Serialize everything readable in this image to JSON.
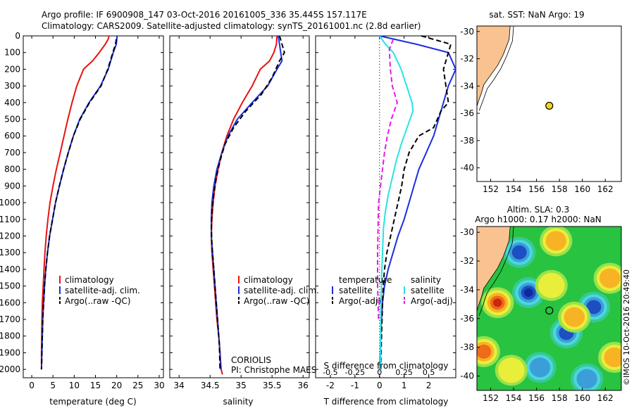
{
  "header": {
    "line1": "Argo profile: IF 6900908_147 03-Oct-2016 20161005_336 35.445S 157.117E",
    "line2": "Climatology: CARS2009. Satellite-adjusted climatology: synTS_20161001.nc (2.8d earlier)"
  },
  "colors": {
    "climatology": "#e8130f",
    "satellite": "#1c2ee0",
    "argo": "#000000",
    "salinity_sat": "#27e4e4",
    "salinity_argo": "#e21ce0",
    "land": "#f9c291",
    "marker": "#f2d517"
  },
  "credits": {
    "coriolis": "CORIOLIS",
    "pi": "PI: Christophe MAES",
    "imos": "©IMOS 10-Oct-2016 20:49:40"
  },
  "chart_data": [
    {
      "id": "temperature",
      "type": "line",
      "xlabel": "temperature (deg C)",
      "ylabel": "",
      "xlim": [
        -2,
        31
      ],
      "ylim": [
        2050,
        0
      ],
      "x_ticks": [
        0,
        5,
        10,
        15,
        20,
        25,
        30
      ],
      "y_ticks": [
        0,
        100,
        200,
        300,
        400,
        500,
        600,
        700,
        800,
        900,
        1000,
        1100,
        1200,
        1300,
        1400,
        1500,
        1600,
        1700,
        1800,
        1900,
        2000
      ],
      "legend": [
        "climatology",
        "satellite-adj. clim.",
        "Argo(..raw -QC)"
      ],
      "legend_position": "lower-center",
      "series": [
        {
          "name": "climatology",
          "color_key": "climatology",
          "style": "solid",
          "x": [
            18.2,
            18.0,
            17.3,
            15.9,
            14.3,
            12.2,
            10.6,
            9.5,
            8.5,
            7.6,
            6.7,
            5.8,
            5.0,
            4.3,
            3.8,
            3.4,
            3.1,
            2.9,
            2.7,
            2.5,
            2.4,
            2.3,
            2.3
          ],
          "y": [
            0,
            20,
            50,
            100,
            150,
            200,
            300,
            400,
            500,
            600,
            700,
            800,
            900,
            1000,
            1100,
            1200,
            1300,
            1400,
            1500,
            1600,
            1700,
            1900,
            2000
          ]
        },
        {
          "name": "satellite-adj. clim.",
          "color_key": "satellite",
          "style": "solid",
          "x": [
            20.1,
            19.9,
            19.2,
            18.0,
            16.2,
            13.5,
            11.3,
            9.8,
            8.6,
            7.5,
            6.5,
            5.6,
            4.9,
            4.2,
            3.7,
            3.3,
            3.0,
            2.8,
            2.6,
            2.5,
            2.4,
            2.3
          ],
          "y": [
            0,
            50,
            100,
            200,
            300,
            400,
            500,
            600,
            700,
            800,
            900,
            1000,
            1100,
            1200,
            1300,
            1400,
            1500,
            1600,
            1700,
            1800,
            1900,
            2000
          ]
        },
        {
          "name": "Argo(..raw -QC)",
          "color_key": "argo",
          "style": "dashed",
          "x": [
            19.9,
            19.7,
            19.1,
            17.9,
            16.3,
            13.6,
            11.4,
            9.8,
            8.6,
            7.5,
            6.5,
            5.6,
            4.9,
            4.2,
            3.7,
            3.3,
            3.0,
            2.8,
            2.6,
            2.5,
            2.4,
            2.3
          ],
          "y": [
            20,
            50,
            100,
            200,
            300,
            400,
            500,
            600,
            700,
            800,
            900,
            1000,
            1100,
            1200,
            1300,
            1400,
            1500,
            1600,
            1700,
            1800,
            1900,
            2000
          ]
        }
      ]
    },
    {
      "id": "salinity",
      "type": "line",
      "xlabel": "salinity",
      "xlim": [
        33.85,
        36.1
      ],
      "ylim": [
        2050,
        0
      ],
      "x_ticks": [
        34,
        34.5,
        35,
        35.5,
        36
      ],
      "legend": [
        "climatology",
        "satellite-adj. clim.",
        "Argo(..raw -QC)"
      ],
      "legend_position": "lower-right",
      "series": [
        {
          "name": "climatology",
          "color_key": "climatology",
          "style": "solid",
          "x": [
            35.58,
            35.57,
            35.53,
            35.46,
            35.31,
            35.18,
            35.02,
            34.88,
            34.77,
            34.69,
            34.63,
            34.58,
            34.55,
            34.53,
            34.52,
            34.53,
            34.55,
            34.57,
            34.59,
            34.61,
            34.64,
            34.66,
            34.68,
            34.7
          ],
          "y": [
            0,
            50,
            100,
            150,
            200,
            300,
            400,
            500,
            600,
            700,
            800,
            900,
            1000,
            1100,
            1200,
            1300,
            1400,
            1500,
            1600,
            1700,
            1800,
            1900,
            2000,
            2030
          ]
        },
        {
          "name": "satellite-adj. clim.",
          "color_key": "satellite",
          "style": "solid",
          "x": [
            35.6,
            35.62,
            35.64,
            35.66,
            35.58,
            35.43,
            35.18,
            34.94,
            34.79,
            34.69,
            34.61,
            34.56,
            34.53,
            34.52,
            34.52,
            34.54,
            34.56,
            34.58,
            34.6,
            34.62,
            34.64,
            34.66,
            34.67
          ],
          "y": [
            0,
            50,
            100,
            150,
            200,
            300,
            400,
            500,
            600,
            700,
            800,
            900,
            1000,
            1100,
            1200,
            1300,
            1400,
            1500,
            1600,
            1700,
            1800,
            1900,
            2000
          ]
        },
        {
          "name": "Argo(..raw -QC)",
          "color_key": "argo",
          "style": "dashed",
          "x": [
            35.62,
            35.66,
            35.7,
            35.62,
            35.5,
            35.33,
            35.08,
            34.88,
            34.74,
            34.66,
            34.6,
            34.56,
            34.53,
            34.52,
            34.53,
            34.55,
            34.57,
            34.59,
            34.61,
            34.63,
            34.65,
            34.66
          ],
          "y": [
            0,
            50,
            100,
            150,
            250,
            350,
            450,
            550,
            650,
            750,
            850,
            950,
            1050,
            1150,
            1250,
            1350,
            1450,
            1550,
            1650,
            1750,
            1850,
            2000
          ]
        }
      ]
    },
    {
      "id": "difference",
      "type": "line",
      "xlabel": "T difference from climatology",
      "x2label": "S difference from climatology",
      "xlim": [
        -2.6,
        3.1
      ],
      "x2lim": [
        -0.65,
        0.775
      ],
      "ylim": [
        2050,
        0
      ],
      "x_ticks": [
        -2,
        -1,
        0,
        1,
        2
      ],
      "x2_ticks": [
        -0.5,
        -0.25,
        0,
        0.25,
        0.5
      ],
      "x2_tick_labels": [
        "-0.5",
        "-0.25",
        "0",
        "0.25",
        "0.5"
      ],
      "legend_temperature_title": "temperature",
      "legend_salinity_title": "salinity",
      "legend_temperature": [
        "satellite",
        "Argo(-adj)"
      ],
      "legend_salinity": [
        "satellite",
        "Argo(-adj)"
      ],
      "series": [
        {
          "name": "temperature satellite",
          "color_key": "satellite",
          "style": "solid",
          "axis": "T",
          "x": [
            0,
            1.5,
            2.8,
            3.1,
            2.8,
            2.6,
            2.4,
            2.2,
            1.9,
            1.6,
            1.4,
            1.2,
            1.0,
            0.75,
            0.55,
            0.35,
            0.2,
            0.12,
            0.08,
            0.05,
            0.03,
            0.02
          ],
          "y": [
            0,
            50,
            100,
            200,
            300,
            400,
            500,
            600,
            700,
            800,
            900,
            1000,
            1100,
            1200,
            1300,
            1400,
            1500,
            1600,
            1700,
            1800,
            1900,
            2000
          ]
        },
        {
          "name": "temperature Argo(-adj)",
          "color_key": "argo",
          "style": "dashed",
          "axis": "T",
          "x": [
            1.7,
            2.9,
            2.6,
            2.8,
            2.5,
            2.2,
            1.6,
            1.2,
            1.0,
            0.9,
            0.75,
            0.6,
            0.45,
            0.3,
            0.2,
            0.15,
            0.12,
            0.1,
            0.08,
            0.06,
            0.05
          ],
          "y": [
            0,
            50,
            200,
            400,
            450,
            550,
            600,
            700,
            800,
            900,
            1000,
            1100,
            1200,
            1300,
            1400,
            1500,
            1600,
            1700,
            1800,
            1900,
            2000
          ]
        },
        {
          "name": "salinity satellite",
          "color_key": "salinity_sat",
          "style": "solid",
          "axis": "S",
          "x": [
            0.0,
            0.06,
            0.14,
            0.22,
            0.33,
            0.34,
            0.28,
            0.22,
            0.17,
            0.13,
            0.09,
            0.06,
            0.04,
            0.03,
            0.02,
            0.015,
            0.01,
            0.01
          ],
          "y": [
            0,
            50,
            100,
            200,
            400,
            450,
            550,
            650,
            750,
            850,
            950,
            1050,
            1150,
            1300,
            1450,
            1600,
            1800,
            2000
          ]
        },
        {
          "name": "salinity Argo(-adj)",
          "color_key": "salinity_argo",
          "style": "dashed",
          "axis": "S",
          "x": [
            0.14,
            0.1,
            0.11,
            0.13,
            0.18,
            0.12,
            0.08,
            0.05,
            0.03,
            0.01,
            -0.01,
            -0.02,
            -0.02,
            -0.01
          ],
          "y": [
            20,
            80,
            200,
            300,
            400,
            500,
            600,
            700,
            800,
            900,
            1000,
            1300,
            1500,
            1700
          ]
        }
      ]
    },
    {
      "id": "sst_map",
      "type": "scatter",
      "title": "sat. SST: NaN Argo: 19",
      "xlim": [
        150.8,
        163.4
      ],
      "ylim": [
        -41,
        -29.6
      ],
      "x_ticks": [
        152,
        154,
        156,
        158,
        160,
        162
      ],
      "y_ticks": [
        -30,
        -32,
        -34,
        -36,
        -38,
        -40
      ],
      "points": [
        {
          "x": 157.117,
          "y": -35.445
        }
      ]
    },
    {
      "id": "sla_map",
      "type": "heatmap",
      "title_line1": "Altim. SLA: 0.3",
      "title_line2": "Argo h1000: 0.17 h2000: NaN",
      "xlim": [
        150.8,
        163.4
      ],
      "ylim": [
        -41,
        -29.6
      ],
      "x_ticks": [
        152,
        154,
        156,
        158,
        160,
        162
      ],
      "y_ticks": [
        -30,
        -32,
        -34,
        -36,
        -38,
        -40
      ],
      "points": [
        {
          "x": 157.117,
          "y": -35.445
        }
      ],
      "eddies": [
        {
          "x": 152.6,
          "y": -34.9,
          "v": 1.0
        },
        {
          "x": 151.4,
          "y": -38.3,
          "v": 0.8
        },
        {
          "x": 155.3,
          "y": -34.2,
          "v": -1.0
        },
        {
          "x": 154.5,
          "y": -31.4,
          "v": -0.7
        },
        {
          "x": 158.6,
          "y": -37.0,
          "v": -0.8
        },
        {
          "x": 161.0,
          "y": -35.2,
          "v": -0.7
        },
        {
          "x": 156.3,
          "y": -39.4,
          "v": -0.6
        },
        {
          "x": 159.3,
          "y": -35.9,
          "v": 0.6
        },
        {
          "x": 157.7,
          "y": -30.6,
          "v": 0.5
        },
        {
          "x": 162.4,
          "y": -33.2,
          "v": 0.5
        },
        {
          "x": 162.8,
          "y": -38.7,
          "v": 0.6
        },
        {
          "x": 160.4,
          "y": -40.2,
          "v": -0.5
        },
        {
          "x": 153.8,
          "y": -39.6,
          "v": 0.4
        },
        {
          "x": 157.3,
          "y": -33.7,
          "v": 0.3
        }
      ]
    }
  ]
}
